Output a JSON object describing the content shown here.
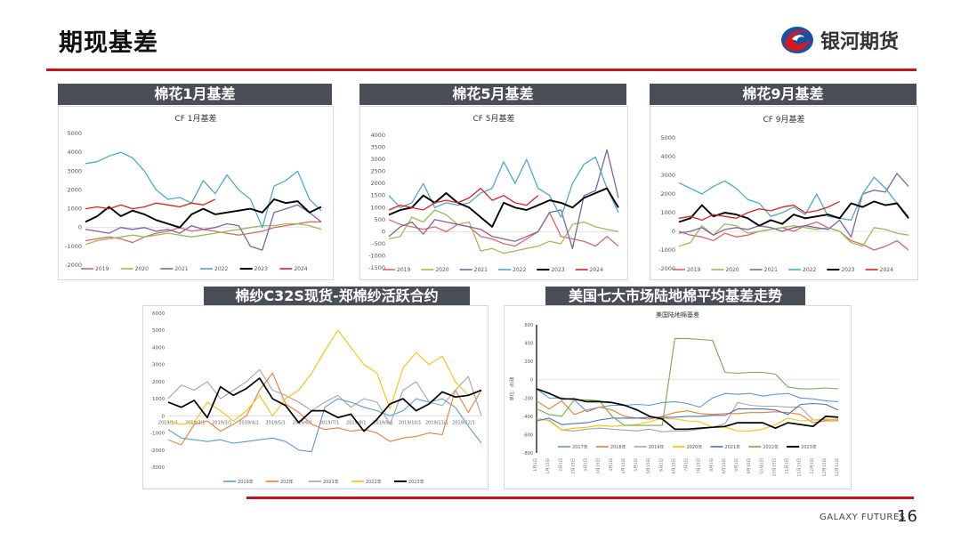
{
  "slide": {
    "title": "期现基差",
    "logo_text": "银河期货",
    "footer": "GALAXY FUTURES",
    "page_number": "16",
    "panel_headers": [
      "棉花1月基差",
      "棉花5月基差",
      "棉花9月基差",
      "棉纱C32S现货-郑棉纱活跃合约",
      "美国七大市场陆地棉平均基差走势"
    ]
  },
  "chart_data": [
    {
      "type": "line",
      "title": "CF 1月基差",
      "ylim": [
        -2000,
        5000
      ],
      "yticks": [
        -2000,
        -1000,
        0,
        1000,
        2000,
        3000,
        4000,
        5000
      ],
      "grid": false,
      "legend": "bottom",
      "series": [
        {
          "name": "2019",
          "color": "#e06666",
          "values": [
            -700,
            -600,
            -500,
            -600,
            -800,
            -500,
            -300,
            -200,
            0,
            -200,
            -100,
            -200,
            -300,
            -400,
            -300,
            -200,
            0,
            100,
            200,
            300,
            300
          ]
        },
        {
          "name": "2020",
          "color": "#9bbb59",
          "values": [
            -900,
            -700,
            -600,
            -500,
            -400,
            -500,
            -400,
            -300,
            -400,
            -500,
            -400,
            -300,
            -200,
            -100,
            0,
            100,
            100,
            200,
            200,
            100,
            -100
          ]
        },
        {
          "name": "2021",
          "color": "#8064a2",
          "values": [
            -100,
            -200,
            -300,
            0,
            -100,
            0,
            -200,
            -100,
            -300,
            100,
            -100,
            0,
            200,
            100,
            -1000,
            -1200,
            800,
            1000,
            1200,
            800,
            300
          ]
        },
        {
          "name": "2022",
          "color": "#4bacc6",
          "values": [
            3400,
            3500,
            3800,
            4000,
            3700,
            3000,
            2000,
            1500,
            1600,
            1300,
            2500,
            1800,
            2800,
            2000,
            1500,
            0,
            2200,
            2500,
            3000,
            1500,
            900
          ]
        },
        {
          "name": "2023",
          "color": "#000000",
          "values": [
            300,
            600,
            1100,
            600,
            900,
            700,
            400,
            200,
            0,
            700,
            1000,
            700,
            800,
            900,
            1000,
            800,
            1500,
            1300,
            1400,
            800,
            1100
          ]
        },
        {
          "name": "2024",
          "color": "#e02020",
          "values": [
            1000,
            1100,
            1000,
            1200,
            1000,
            1100,
            1300,
            1200,
            1100,
            1300,
            1200,
            1500
          ]
        }
      ]
    },
    {
      "type": "line",
      "title": "CF 5月基差",
      "ylim": [
        -1500,
        4000
      ],
      "yticks": [
        -1500,
        -1000,
        -500,
        0,
        500,
        1000,
        1500,
        2000,
        2500,
        3000,
        3500,
        4000
      ],
      "grid": false,
      "legend": "bottom",
      "series": [
        {
          "name": "2019",
          "color": "#e06666",
          "values": [
            500,
            300,
            200,
            100,
            200,
            0,
            300,
            200,
            -200,
            -300,
            -500,
            -600,
            -300,
            0,
            800,
            -200,
            -300,
            -400,
            -600,
            -200,
            -600
          ]
        },
        {
          "name": "2020",
          "color": "#9bbb59",
          "values": [
            -300,
            -200,
            600,
            400,
            900,
            700,
            300,
            400,
            -800,
            -700,
            -900,
            -800,
            -700,
            -600,
            -400,
            -500,
            300,
            400,
            200,
            100,
            0
          ]
        },
        {
          "name": "2021",
          "color": "#8064a2",
          "values": [
            -200,
            200,
            400,
            -100,
            500,
            400,
            300,
            200,
            100,
            -200,
            -300,
            -400,
            -200,
            0,
            800,
            900,
            -700,
            1500,
            1700,
            3400,
            1400
          ]
        },
        {
          "name": "2022",
          "color": "#4bacc6",
          "values": [
            1500,
            1000,
            1200,
            2000,
            1000,
            1200,
            1100,
            1200,
            1600,
            1800,
            2900,
            2000,
            3000,
            1800,
            1500,
            600,
            2000,
            2800,
            3100,
            1800,
            800
          ]
        },
        {
          "name": "2023",
          "color": "#000000",
          "values": [
            700,
            900,
            1000,
            1500,
            1200,
            1600,
            1200,
            1000,
            600,
            200,
            1200,
            1000,
            900,
            1100,
            1300,
            1200,
            1000,
            1400,
            1600,
            1800,
            1000
          ]
        },
        {
          "name": "2024",
          "color": "#e02020",
          "values": [
            900,
            1100,
            1000,
            900,
            1200,
            1300,
            1200,
            1400,
            1800,
            1300,
            1500,
            1200,
            1100,
            1500
          ]
        }
      ]
    },
    {
      "type": "line",
      "title": "CF 9月基差",
      "ylim": [
        -2000,
        5000
      ],
      "yticks": [
        -2000,
        -1000,
        0,
        1000,
        2000,
        3000,
        4000,
        5000
      ],
      "grid": false,
      "legend": "bottom",
      "series": [
        {
          "name": "2019",
          "color": "#e06666",
          "values": [
            0,
            -200,
            -300,
            -500,
            -100,
            -300,
            -200,
            0,
            100,
            200,
            0,
            300,
            500,
            200,
            0,
            -500,
            -700,
            -1000,
            -800,
            -500,
            -1000
          ]
        },
        {
          "name": "2020",
          "color": "#9bbb59",
          "values": [
            -800,
            -600,
            300,
            -200,
            400,
            300,
            -100,
            0,
            100,
            200,
            300,
            200,
            100,
            200,
            0,
            -600,
            -800,
            200,
            100,
            -100,
            -200
          ]
        },
        {
          "name": "2021",
          "color": "#8064a2",
          "values": [
            -100,
            0,
            200,
            -200,
            100,
            200,
            100,
            300,
            200,
            0,
            200,
            300,
            200,
            100,
            600,
            -300,
            2000,
            2200,
            2100,
            3100,
            2400
          ]
        },
        {
          "name": "2022",
          "color": "#4bacc6",
          "values": [
            2600,
            2300,
            2000,
            2400,
            2700,
            2300,
            1700,
            1500,
            800,
            1000,
            1300,
            900,
            2000,
            800,
            700,
            600,
            2000,
            2900,
            2300,
            1500,
            800
          ]
        },
        {
          "name": "2023",
          "color": "#000000",
          "values": [
            500,
            700,
            1400,
            800,
            1000,
            900,
            700,
            300,
            600,
            400,
            900,
            700,
            800,
            900,
            700,
            1500,
            1300,
            1600,
            1400,
            1500,
            700
          ]
        },
        {
          "name": "2024",
          "color": "#e02020",
          "values": [
            700,
            800,
            600,
            900,
            800,
            700,
            1000,
            1200,
            1100,
            1300,
            1400,
            1000,
            1100,
            1300,
            1600
          ]
        }
      ]
    },
    {
      "type": "line",
      "title": "",
      "ylim": [
        -3000,
        6000
      ],
      "yticks": [
        -3000,
        -2000,
        -1000,
        0,
        1000,
        2000,
        3000,
        4000,
        5000,
        6000
      ],
      "grid": false,
      "legend": "bottom",
      "xticks": [
        "2019/1/1",
        "2019/2/1",
        "2019/3/1",
        "2019/4/1",
        "2019/5/1",
        "2019/6/1",
        "2019/7/1",
        "2019/8/1",
        "2019/9/1",
        "2019/10/1",
        "2019/11/1",
        "2019/12/1"
      ],
      "series": [
        {
          "name": "2019年",
          "color": "#5b9bd5",
          "values": [
            -800,
            -1300,
            -1400,
            -1500,
            -1400,
            -1600,
            -1500,
            -1400,
            -1300,
            -1500,
            -2000,
            -2100,
            500,
            1000,
            800,
            500,
            300,
            0,
            300,
            1000,
            800,
            1000,
            500,
            -600,
            -1600
          ]
        },
        {
          "name": "202年",
          "color": "#ed7d31",
          "values": [
            -1400,
            -1700,
            -500,
            -300,
            -900,
            -500,
            0,
            1500,
            2500,
            700,
            200,
            -500,
            -800,
            -700,
            -900,
            -800,
            -1000,
            -1500,
            -1300,
            -1200,
            -1000,
            -1100,
            1500,
            200,
            1500
          ]
        },
        {
          "name": "2021年",
          "color": "#a5a5a5",
          "values": [
            1000,
            1800,
            1500,
            2000,
            1000,
            1500,
            2000,
            2700,
            1500,
            1200,
            800,
            300,
            800,
            1200,
            500,
            1000,
            800,
            -500,
            1500,
            2000,
            800,
            600,
            1500,
            2300,
            0
          ]
        },
        {
          "name": "2022年",
          "color": "#ffc000",
          "values": [
            -300,
            -500,
            -400,
            800,
            300,
            -300,
            300,
            1200,
            0,
            1000,
            1500,
            2500,
            3800,
            5000,
            4000,
            3000,
            2500,
            400,
            2800,
            3700,
            3000,
            3500,
            2000,
            1200,
            1500
          ]
        },
        {
          "name": "2023年",
          "color": "#000000",
          "values": [
            800,
            500,
            900,
            -100,
            1700,
            1200,
            1600,
            2200,
            1000,
            600,
            -400,
            300,
            300,
            -100,
            100,
            -900,
            -200,
            700,
            1000,
            300,
            700,
            1400,
            1100,
            1200,
            1500
          ]
        }
      ]
    },
    {
      "type": "line",
      "title": "美国陆地棉基差",
      "ylabel": "单位：点/磅",
      "ylim": [
        -800,
        600
      ],
      "yticks": [
        -800,
        -600,
        -400,
        -200,
        0,
        200,
        400,
        600
      ],
      "grid": false,
      "legend": "bottom",
      "xticks": [
        "1月1日",
        "1月15日",
        "2月1日",
        "2月15日",
        "3月1日",
        "3月15日",
        "4月1日",
        "4月15日",
        "5月1日",
        "5月15日",
        "6月1日",
        "6月15日",
        "7月1日",
        "7月15日",
        "8月1日",
        "8月15日",
        "9月1日",
        "9月15日",
        "10月1日",
        "10月15日",
        "11月1日",
        "11月15日",
        "12月1日",
        "12月15日",
        "12月31日"
      ],
      "series": [
        {
          "name": "2017年",
          "color": "#5b9bd5",
          "values": [
            -100,
            -200,
            -200,
            -220,
            -350,
            -300,
            -280,
            -280,
            -270,
            -280,
            -250,
            -240,
            -260,
            -300,
            -200,
            -150,
            -160,
            -150,
            -180,
            -160,
            -150,
            -200,
            -210,
            -230,
            -240
          ]
        },
        {
          "name": "2018年",
          "color": "#ed7d31",
          "values": [
            -230,
            -320,
            -230,
            -380,
            -330,
            -300,
            -330,
            -400,
            -420,
            -430,
            -400,
            -360,
            -340,
            -370,
            -380,
            -370,
            -370,
            -360,
            -360,
            -350,
            -360,
            -380,
            -470,
            -450,
            -450
          ]
        },
        {
          "name": "2019年",
          "color": "#a5a5a5",
          "values": [
            -440,
            -440,
            -550,
            -560,
            -540,
            -530,
            -540,
            -550,
            -560,
            -540,
            -570,
            -560,
            -560,
            -540,
            -520,
            -480,
            -250,
            -280,
            -290,
            -290,
            -300,
            -300,
            -440,
            -440,
            -430
          ]
        },
        {
          "name": "2020年",
          "color": "#ffc000",
          "values": [
            -420,
            -450,
            -550,
            -530,
            -520,
            -500,
            -510,
            -500,
            -490,
            -460,
            -420,
            -430,
            -450,
            -460,
            -520,
            -520,
            -560,
            -560,
            -540,
            -490,
            -420,
            -450,
            -440,
            -430,
            -440
          ]
        },
        {
          "name": "2021年",
          "color": "#4472c4",
          "values": [
            -450,
            -420,
            -490,
            -480,
            -470,
            -440,
            -420,
            -420,
            -420,
            -410,
            -410,
            -410,
            -400,
            -400,
            -390,
            -390,
            -320,
            -320,
            -320,
            -330,
            -380,
            -270,
            -260,
            -270,
            -330
          ]
        },
        {
          "name": "2022年",
          "color": "#70ad47",
          "values": [
            -320,
            -380,
            -400,
            -220,
            -220,
            -230,
            -400,
            -500,
            -500,
            -500,
            -500,
            450,
            450,
            440,
            430,
            80,
            70,
            80,
            80,
            60,
            -80,
            -100,
            -100,
            -90,
            -100
          ]
        },
        {
          "name": "2023年",
          "color": "#000000",
          "values": [
            -100,
            -150,
            -210,
            -210,
            -240,
            -240,
            -250,
            -280,
            -330,
            -400,
            -430,
            -540,
            -540,
            -530,
            -520,
            -510,
            -470,
            -470,
            -470,
            -530,
            -470,
            -490,
            -510,
            -400,
            -410
          ]
        }
      ]
    }
  ]
}
